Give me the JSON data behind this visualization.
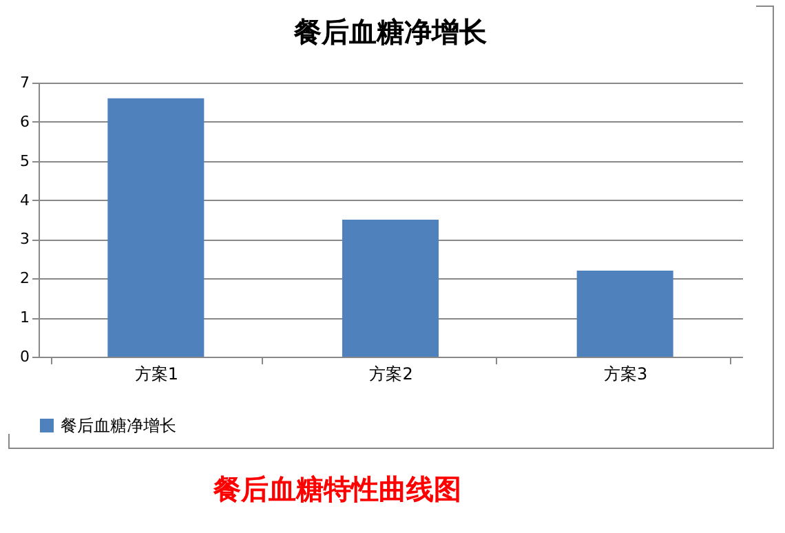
{
  "chart_data": {
    "type": "bar",
    "title": "餐后血糖净增长",
    "categories": [
      "方案1",
      "方案2",
      "方案3"
    ],
    "series": [
      {
        "name": "餐后血糖净增长",
        "color": "#4f81bd",
        "values": [
          6.6,
          3.5,
          2.2
        ]
      }
    ],
    "ylim": [
      0,
      7
    ],
    "yticks": [
      0,
      1,
      2,
      3,
      4,
      5,
      6,
      7
    ],
    "grid": "y",
    "legend": "bottom",
    "annotations": [
      "餐后血糖特性曲线图"
    ]
  }
}
